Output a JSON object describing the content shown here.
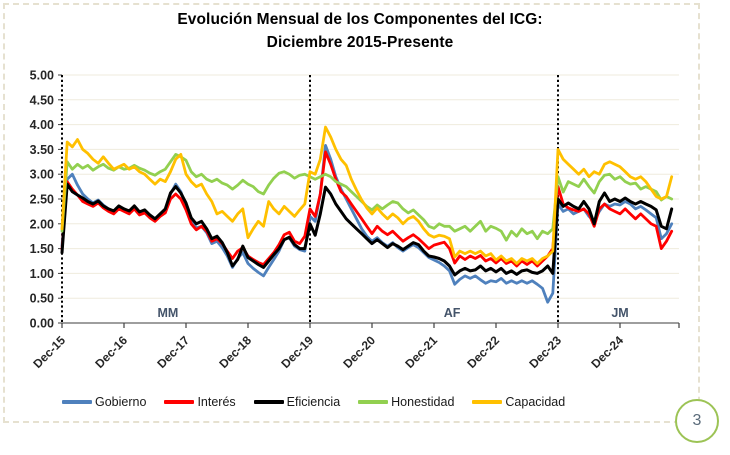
{
  "title": {
    "line1": "Evolución Mensual de los Componentes del ICG:",
    "line2": "Diciembre 2015-Presente"
  },
  "footer": {
    "page_number": "3"
  },
  "chart_data": {
    "type": "line",
    "x_unit": "month",
    "x_start": "Dec-15",
    "x_end": "Oct-25",
    "x_tick_labels": [
      "Dec-15",
      "Dec-16",
      "Dec-17",
      "Dec-18",
      "Dec-19",
      "Dec-20",
      "Dec-21",
      "Dec-22",
      "Dec-23",
      "Dec-24"
    ],
    "y_tick_labels": [
      "5.00",
      "4.50",
      "4.00",
      "3.50",
      "3.00",
      "2.50",
      "2.00",
      "1.50",
      "1.00",
      "0.50",
      "0.00"
    ],
    "ylim": [
      0,
      5
    ],
    "grid": "horizontal",
    "legend_position": "bottom",
    "dividers": {
      "style": "dotted-vertical",
      "color": "#000000",
      "at": [
        "Dec-15",
        "Dec-19",
        "Dec-23"
      ]
    },
    "period_labels": [
      {
        "label": "MM",
        "month_index": 20.5
      },
      {
        "label": "AF",
        "month_index": 75.5
      },
      {
        "label": "JM",
        "month_index": 108
      }
    ],
    "series": [
      {
        "name": "Gobierno",
        "color": "#4F81BD",
        "values": [
          1.55,
          2.9,
          3.0,
          2.78,
          2.6,
          2.5,
          2.42,
          2.48,
          2.38,
          2.3,
          2.25,
          2.35,
          2.3,
          2.25,
          2.35,
          2.2,
          2.25,
          2.18,
          2.1,
          2.2,
          2.28,
          2.6,
          2.8,
          2.65,
          2.35,
          2.05,
          1.92,
          1.95,
          1.82,
          1.6,
          1.65,
          1.52,
          1.35,
          1.12,
          1.3,
          1.42,
          1.2,
          1.1,
          1.02,
          0.95,
          1.12,
          1.28,
          1.45,
          1.68,
          1.72,
          1.55,
          1.48,
          1.45,
          2.15,
          2.05,
          2.6,
          3.58,
          3.3,
          2.95,
          2.7,
          2.5,
          2.3,
          2.1,
          1.9,
          1.75,
          1.65,
          1.72,
          1.62,
          1.55,
          1.62,
          1.52,
          1.45,
          1.52,
          1.58,
          1.52,
          1.42,
          1.32,
          1.27,
          1.22,
          1.15,
          1.05,
          0.78,
          0.88,
          0.95,
          0.9,
          0.95,
          0.87,
          0.8,
          0.85,
          0.83,
          0.9,
          0.8,
          0.85,
          0.8,
          0.85,
          0.8,
          0.85,
          0.78,
          0.7,
          0.42,
          0.6,
          2.4,
          2.25,
          2.3,
          2.2,
          2.25,
          2.3,
          2.15,
          2.05,
          2.25,
          2.4,
          2.35,
          2.4,
          2.38,
          2.45,
          2.4,
          2.3,
          2.35,
          2.28,
          2.2,
          2.12,
          1.7,
          1.8,
          2.0
        ]
      },
      {
        "name": "Interés",
        "color": "#FF0000",
        "values": [
          1.48,
          2.85,
          2.7,
          2.58,
          2.45,
          2.4,
          2.35,
          2.42,
          2.32,
          2.25,
          2.2,
          2.3,
          2.25,
          2.2,
          2.3,
          2.18,
          2.22,
          2.12,
          2.05,
          2.15,
          2.22,
          2.5,
          2.6,
          2.5,
          2.28,
          2.0,
          1.88,
          1.95,
          1.85,
          1.65,
          1.7,
          1.6,
          1.45,
          1.3,
          1.45,
          1.52,
          1.35,
          1.28,
          1.22,
          1.18,
          1.3,
          1.42,
          1.58,
          1.78,
          1.83,
          1.65,
          1.6,
          1.75,
          2.3,
          2.15,
          2.6,
          3.45,
          3.2,
          2.9,
          2.65,
          2.55,
          2.4,
          2.25,
          2.1,
          1.95,
          1.8,
          1.95,
          1.85,
          1.78,
          1.85,
          1.75,
          1.65,
          1.72,
          1.78,
          1.7,
          1.6,
          1.5,
          1.57,
          1.6,
          1.63,
          1.5,
          1.21,
          1.35,
          1.28,
          1.35,
          1.3,
          1.36,
          1.25,
          1.3,
          1.21,
          1.3,
          1.2,
          1.25,
          1.15,
          1.25,
          1.18,
          1.25,
          1.15,
          1.25,
          1.35,
          1.5,
          2.75,
          2.4,
          2.32,
          2.28,
          2.25,
          2.3,
          2.2,
          1.95,
          2.3,
          2.4,
          2.3,
          2.25,
          2.2,
          2.3,
          2.2,
          2.1,
          2.2,
          2.1,
          2.0,
          1.95,
          1.5,
          1.65,
          1.85
        ]
      },
      {
        "name": "Eficiencia",
        "color": "#000000",
        "values": [
          1.42,
          2.8,
          2.65,
          2.58,
          2.52,
          2.45,
          2.4,
          2.46,
          2.36,
          2.3,
          2.26,
          2.36,
          2.3,
          2.26,
          2.36,
          2.24,
          2.28,
          2.18,
          2.1,
          2.2,
          2.3,
          2.62,
          2.75,
          2.62,
          2.42,
          2.12,
          2.0,
          2.05,
          1.9,
          1.7,
          1.75,
          1.62,
          1.42,
          1.15,
          1.28,
          1.55,
          1.32,
          1.25,
          1.18,
          1.12,
          1.25,
          1.38,
          1.5,
          1.68,
          1.73,
          1.58,
          1.5,
          1.5,
          2.0,
          1.77,
          2.2,
          2.74,
          2.6,
          2.4,
          2.25,
          2.1,
          2.0,
          1.9,
          1.8,
          1.7,
          1.6,
          1.68,
          1.6,
          1.52,
          1.6,
          1.55,
          1.48,
          1.55,
          1.62,
          1.58,
          1.45,
          1.35,
          1.33,
          1.3,
          1.25,
          1.15,
          0.97,
          1.05,
          1.1,
          1.05,
          1.07,
          1.15,
          1.05,
          1.1,
          1.03,
          1.1,
          1.0,
          1.05,
          0.98,
          1.05,
          1.07,
          1.02,
          1.0,
          1.05,
          1.15,
          1.0,
          2.5,
          2.35,
          2.42,
          2.35,
          2.3,
          2.45,
          2.3,
          2.0,
          2.45,
          2.62,
          2.45,
          2.5,
          2.45,
          2.52,
          2.45,
          2.4,
          2.45,
          2.4,
          2.35,
          2.28,
          1.95,
          1.9,
          2.3
        ]
      },
      {
        "name": "Honestidad",
        "color": "#92D050",
        "values": [
          1.85,
          3.25,
          3.1,
          3.2,
          3.12,
          3.18,
          3.08,
          3.15,
          3.2,
          3.12,
          3.08,
          3.15,
          3.1,
          3.12,
          3.18,
          3.12,
          3.08,
          3.02,
          2.98,
          3.05,
          3.1,
          3.25,
          3.4,
          3.35,
          3.28,
          3.05,
          2.95,
          3.0,
          2.9,
          2.85,
          2.9,
          2.82,
          2.78,
          2.7,
          2.78,
          2.88,
          2.8,
          2.75,
          2.65,
          2.6,
          2.78,
          2.92,
          3.02,
          3.05,
          3.0,
          2.92,
          2.98,
          3.0,
          2.95,
          2.9,
          2.95,
          3.0,
          2.95,
          2.85,
          2.8,
          2.75,
          2.65,
          2.55,
          2.45,
          2.35,
          2.28,
          2.38,
          2.3,
          2.38,
          2.45,
          2.42,
          2.3,
          2.22,
          2.28,
          2.18,
          2.08,
          1.95,
          1.91,
          2.0,
          1.95,
          1.95,
          1.85,
          1.9,
          1.95,
          1.85,
          1.95,
          2.05,
          1.85,
          1.95,
          1.91,
          1.85,
          1.67,
          1.85,
          1.75,
          1.9,
          1.8,
          1.85,
          1.7,
          1.85,
          1.8,
          1.9,
          2.95,
          2.64,
          2.85,
          2.8,
          2.75,
          2.9,
          2.75,
          2.62,
          2.85,
          2.98,
          3.0,
          2.9,
          2.95,
          2.85,
          2.8,
          2.82,
          2.7,
          2.75,
          2.7,
          2.65,
          2.48,
          2.55,
          2.5
        ]
      },
      {
        "name": "Capacidad",
        "color": "#FFC000",
        "values": [
          1.9,
          3.65,
          3.55,
          3.7,
          3.5,
          3.42,
          3.3,
          3.22,
          3.35,
          3.22,
          3.1,
          3.15,
          3.2,
          3.1,
          3.15,
          3.05,
          3.0,
          2.9,
          2.8,
          2.9,
          2.85,
          3.05,
          3.3,
          3.4,
          3.0,
          2.85,
          2.75,
          2.8,
          2.6,
          2.45,
          2.2,
          2.25,
          2.15,
          2.05,
          2.2,
          2.3,
          1.72,
          1.9,
          2.05,
          1.95,
          2.45,
          2.3,
          2.2,
          2.35,
          2.25,
          2.15,
          2.28,
          2.4,
          3.05,
          3.0,
          3.3,
          3.95,
          3.75,
          3.5,
          3.3,
          3.18,
          2.9,
          2.68,
          2.48,
          2.32,
          2.2,
          2.32,
          2.2,
          2.1,
          2.2,
          2.12,
          2.0,
          2.1,
          2.15,
          2.05,
          1.9,
          1.78,
          1.73,
          1.77,
          1.75,
          1.7,
          1.33,
          1.45,
          1.4,
          1.45,
          1.4,
          1.45,
          1.35,
          1.4,
          1.27,
          1.35,
          1.25,
          1.3,
          1.2,
          1.3,
          1.25,
          1.3,
          1.2,
          1.3,
          1.35,
          1.45,
          3.5,
          3.3,
          3.2,
          3.1,
          3.0,
          3.1,
          2.95,
          3.05,
          3.0,
          3.2,
          3.25,
          3.2,
          3.15,
          3.05,
          2.95,
          2.9,
          2.95,
          2.85,
          2.7,
          2.55,
          2.5,
          2.55,
          2.95
        ]
      }
    ]
  }
}
